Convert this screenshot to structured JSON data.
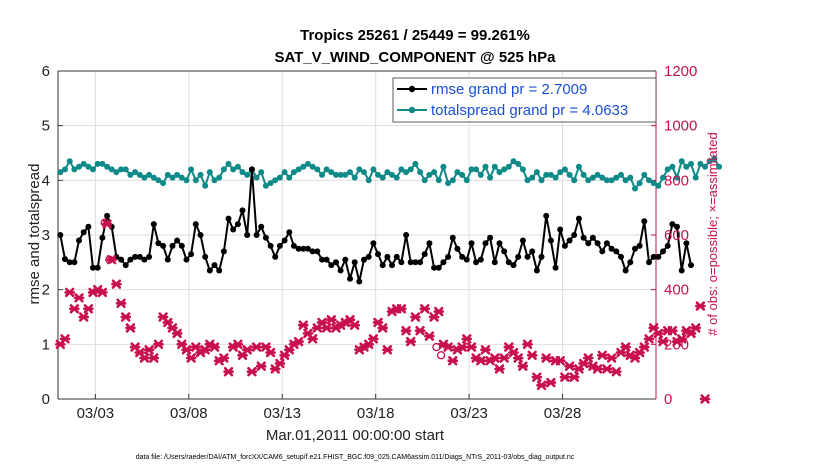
{
  "colors": {
    "rmse": "#000000",
    "spread": "#0e8a88",
    "obs": "#c8104f",
    "legend_text": "#1a4fd6"
  },
  "chart_data": {
    "type": "line",
    "title_line1": "Tropics 25261 / 25449 = 99.261%",
    "title_line2": "SAT_V_WIND_COMPONENT @ 525 hPa",
    "xlabel": "Mar.01,2011 00:00:00 start",
    "ylabel_left": "rmse and totalspread",
    "ylabel_right": "# of obs: o=possible; ×=assimilated",
    "footer": "data file: /Users/raeder/DAI/ATM_forcXX/CAM6_setup/f.e21.FHIST_BGC.f09_025.CAM6assim.011/Diags_NTrS_2011-03/obs_diag_output.nc",
    "xlim": [
      1.0,
      33.0
    ],
    "x_ticks": [
      3,
      8,
      13,
      18,
      23,
      28
    ],
    "x_tick_labels": [
      "03/03",
      "03/08",
      "03/13",
      "03/18",
      "03/23",
      "03/28"
    ],
    "ylim_left": [
      0,
      6
    ],
    "y_ticks_left": [
      "0",
      "1",
      "2",
      "3",
      "4",
      "5",
      "6"
    ],
    "ylim_right": [
      0,
      1200
    ],
    "y_ticks_right": [
      "0",
      "200",
      "400",
      "600",
      "800",
      "1000",
      "1200"
    ],
    "grid": true,
    "legend_placement": "top-right",
    "x_start": 1.125,
    "x_step": 0.25,
    "series": [
      {
        "name": "rmse grand pr = 2.7009",
        "axis": "left",
        "marker": "dot",
        "values": [
          3.0,
          2.56,
          2.5,
          2.5,
          2.9,
          3.05,
          3.15,
          2.4,
          2.4,
          2.95,
          3.35,
          3.15,
          2.6,
          2.55,
          2.45,
          2.55,
          2.6,
          2.6,
          2.55,
          2.6,
          3.2,
          2.85,
          2.8,
          2.55,
          2.8,
          2.9,
          2.8,
          2.55,
          2.65,
          3.2,
          3.0,
          2.6,
          2.35,
          2.45,
          2.35,
          2.7,
          3.3,
          3.1,
          3.2,
          3.45,
          3.0,
          4.2,
          3.0,
          3.15,
          2.95,
          2.8,
          2.6,
          2.8,
          2.9,
          3.05,
          2.8,
          2.75,
          2.75,
          2.75,
          2.7,
          2.7,
          2.55,
          2.55,
          2.45,
          2.5,
          2.35,
          2.55,
          2.2,
          2.5,
          2.15,
          2.55,
          2.6,
          2.85,
          2.65,
          2.45,
          2.6,
          2.45,
          2.6,
          2.5,
          3.0,
          2.5,
          2.5,
          2.5,
          2.65,
          2.85,
          2.4,
          2.4,
          2.5,
          2.6,
          2.95,
          2.75,
          2.6,
          2.55,
          2.85,
          2.5,
          2.55,
          2.85,
          2.95,
          2.5,
          2.85,
          2.7,
          2.5,
          2.45,
          2.6,
          2.9,
          2.6,
          2.7,
          2.35,
          2.6,
          3.35,
          2.9,
          2.4,
          3.1,
          2.8,
          2.9,
          3.0,
          3.3,
          2.95,
          2.85,
          2.95,
          2.85,
          2.7,
          2.85,
          2.75,
          2.7,
          2.6,
          2.35,
          2.5,
          2.75,
          2.8,
          3.25,
          2.5,
          2.6,
          2.6,
          2.7,
          2.8,
          3.2,
          3.15,
          2.35,
          2.85,
          2.45
        ]
      },
      {
        "name": "totalspread grand pr = 4.0633",
        "axis": "left",
        "marker": "dot",
        "values": [
          4.15,
          4.2,
          4.35,
          4.2,
          4.25,
          4.3,
          4.25,
          4.2,
          4.3,
          4.3,
          4.25,
          4.2,
          4.15,
          4.2,
          4.2,
          4.1,
          4.15,
          4.1,
          4.05,
          4.1,
          4.05,
          4.0,
          3.95,
          4.1,
          4.05,
          4.1,
          4.05,
          4.0,
          4.2,
          4.0,
          4.1,
          3.9,
          4.15,
          4.0,
          4.05,
          4.2,
          4.3,
          4.2,
          4.25,
          4.15,
          4.1,
          4.2,
          4.05,
          4.15,
          3.9,
          3.95,
          4.0,
          4.05,
          4.15,
          4.05,
          4.15,
          4.2,
          4.25,
          4.3,
          4.25,
          4.2,
          4.1,
          4.2,
          4.15,
          4.1,
          4.1,
          4.1,
          4.15,
          4.05,
          4.2,
          4.15,
          4.0,
          4.2,
          4.1,
          4.05,
          4.15,
          4.1,
          4.05,
          4.2,
          4.15,
          4.2,
          4.3,
          4.15,
          4.0,
          4.1,
          4.15,
          4.0,
          4.25,
          3.95,
          4.0,
          4.15,
          4.1,
          4.0,
          4.2,
          4.2,
          4.1,
          4.25,
          4.05,
          4.25,
          4.15,
          4.2,
          4.25,
          4.35,
          4.3,
          4.2,
          4.0,
          4.05,
          4.15,
          4.0,
          4.1,
          4.1,
          4.05,
          4.15,
          4.2,
          4.1,
          4.0,
          4.25,
          4.1,
          4.0,
          4.05,
          4.1,
          4.05,
          4.0,
          4.0,
          4.05,
          4.1,
          4.0,
          4.05,
          3.85,
          3.95,
          4.1,
          4.0,
          3.95,
          3.9,
          4.05,
          4.2,
          4.25,
          4.05,
          4.35,
          4.25,
          4.3,
          4.05,
          4.3,
          4.25,
          4.35,
          4.4,
          4.25
        ]
      },
      {
        "name": "assimilated",
        "axis": "right",
        "marker": "x",
        "values": [
          200,
          220,
          390,
          330,
          370,
          300,
          330,
          390,
          400,
          390,
          640,
          510,
          420,
          350,
          300,
          260,
          190,
          170,
          150,
          180,
          150,
          200,
          300,
          280,
          260,
          240,
          200,
          180,
          150,
          190,
          170,
          180,
          200,
          190,
          140,
          150,
          100,
          190,
          200,
          160,
          180,
          100,
          190,
          120,
          190,
          170,
          110,
          130,
          160,
          180,
          200,
          210,
          270,
          240,
          220,
          260,
          280,
          260,
          290,
          260,
          270,
          280,
          290,
          270,
          180,
          190,
          200,
          220,
          280,
          260,
          180,
          320,
          330,
          330,
          250,
          210,
          300,
          250,
          330,
          230,
          300,
          320,
          200,
          190,
          140,
          180,
          190,
          220,
          190,
          150,
          140,
          180,
          140,
          150,
          110,
          150,
          190,
          170,
          150,
          120,
          200,
          160,
          80,
          50,
          150,
          60,
          140,
          140,
          80,
          120,
          80,
          110,
          130,
          150,
          120,
          110,
          160,
          110,
          150,
          100,
          170,
          190,
          160,
          150,
          170,
          190,
          220,
          260,
          240,
          210,
          250,
          250,
          210,
          220,
          250,
          240,
          260,
          340,
          0
        ]
      },
      {
        "name": "possible",
        "axis": "right",
        "marker": "o",
        "points": [
          [
            3.5,
            645
          ],
          [
            3.75,
            510
          ],
          [
            21.25,
            190
          ],
          [
            21.5,
            160
          ]
        ]
      }
    ]
  }
}
